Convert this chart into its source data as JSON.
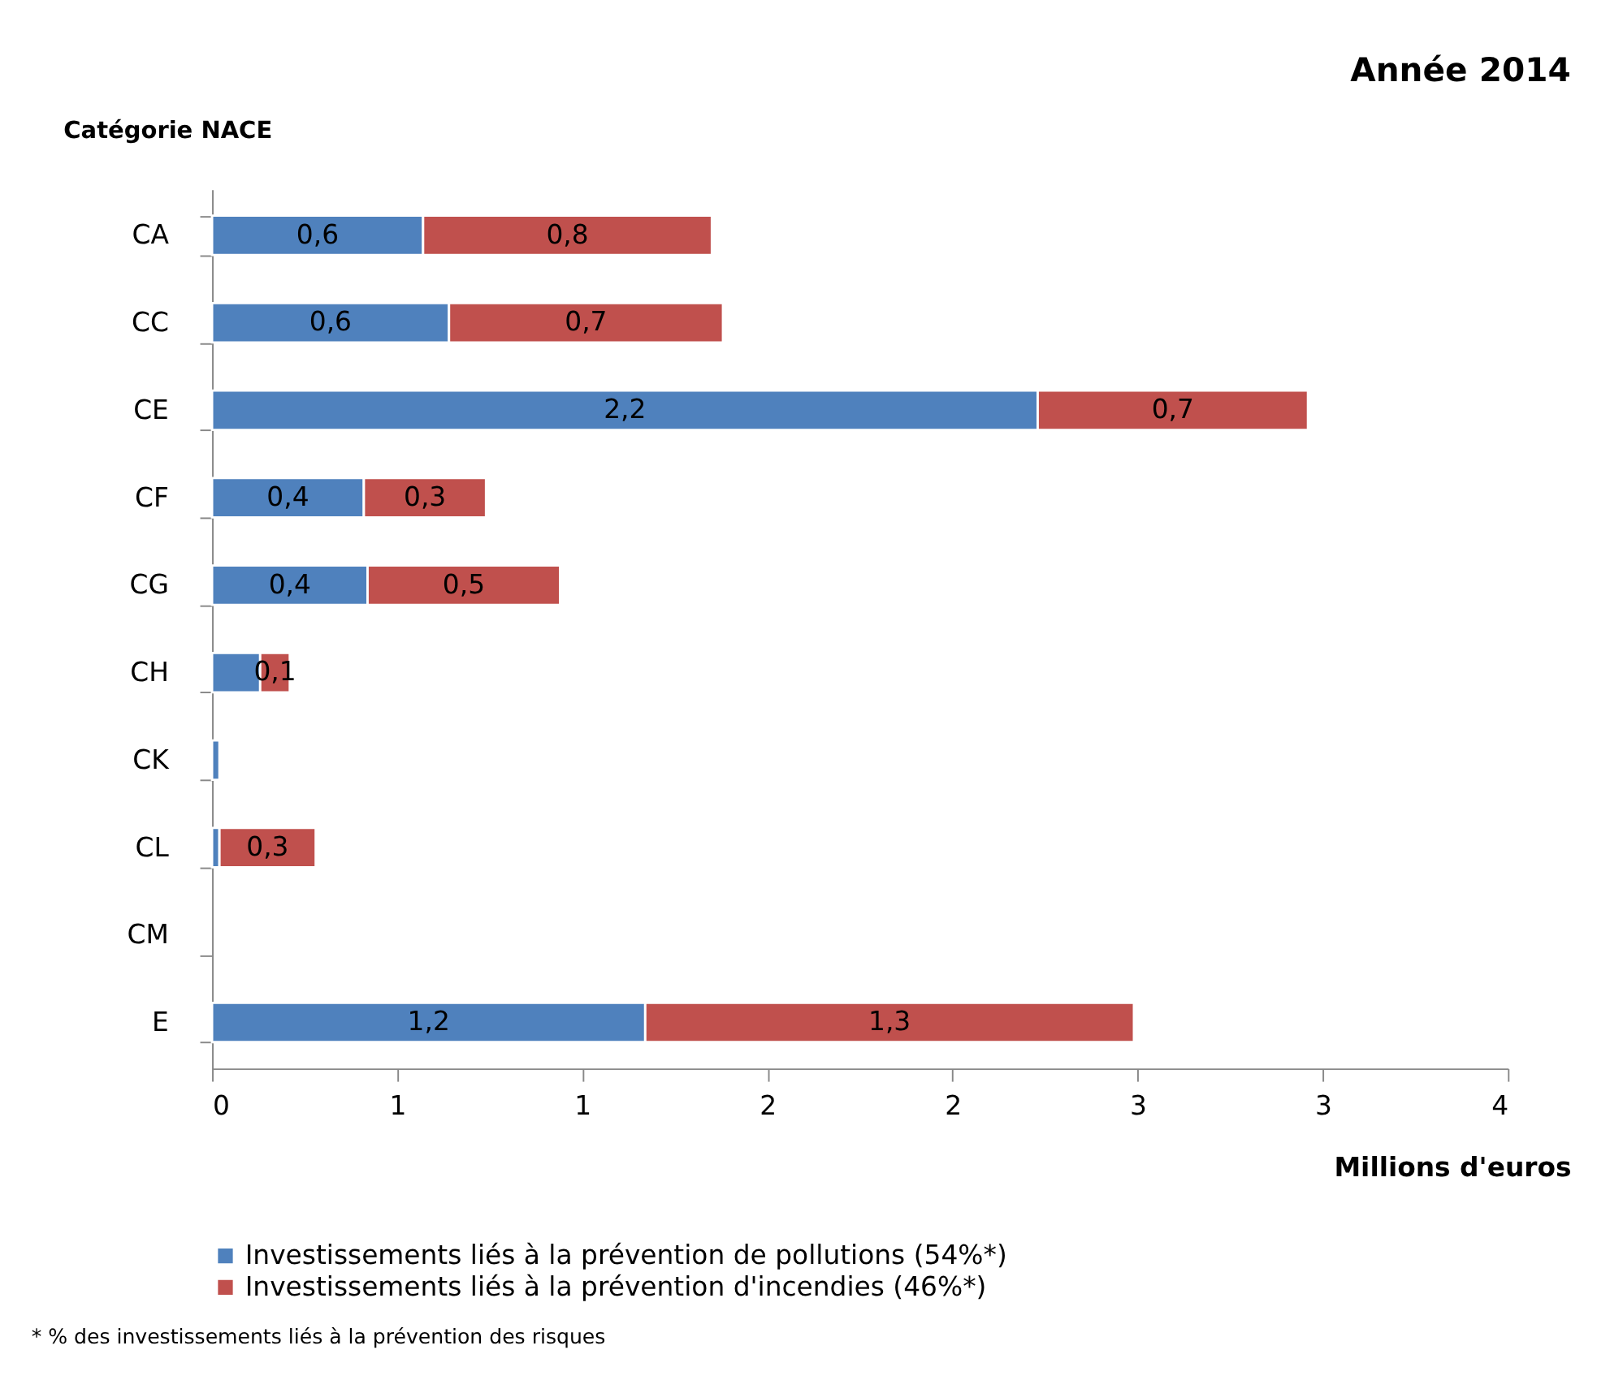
{
  "chart_data": {
    "type": "bar",
    "orientation": "horizontal",
    "stacked": true,
    "title": "Année 2014",
    "ylabel": "Catégorie NACE",
    "xlabel": "Millions d'euros",
    "categories": [
      "CA",
      "CC",
      "CE",
      "CF",
      "CG",
      "CH",
      "CK",
      "CL",
      "CM",
      "E"
    ],
    "series": [
      {
        "name": "Investissements liés à la prévention de pollutions (54%*)",
        "color": "#4f81bd",
        "values": [
          0.57,
          0.64,
          2.23,
          0.41,
          0.42,
          0.13,
          0.02,
          0.02,
          null,
          1.17
        ],
        "value_labels": [
          "0,6",
          "0,6",
          "2,2",
          "0,4",
          "0,4",
          null,
          null,
          null,
          null,
          "1,2"
        ]
      },
      {
        "name": "Investissements liés à la prévention d'incendies (46%*)",
        "color": "#c0504d",
        "values": [
          0.78,
          0.74,
          0.73,
          0.33,
          0.52,
          0.08,
          null,
          0.26,
          null,
          1.32
        ],
        "value_labels": [
          "0,8",
          "0,7",
          "0,7",
          "0,3",
          "0,5",
          "0,1",
          null,
          "0,3",
          null,
          "1,3"
        ]
      }
    ],
    "xlim": [
      0,
      3.5
    ],
    "xticks": [
      0,
      {
        "value": 0.5,
        "label": "1"
      },
      1,
      {
        "value": 1.5,
        "label": "2"
      },
      2,
      {
        "value": 2.5,
        "label": "3"
      },
      3,
      {
        "value": 3.5,
        "label": "4"
      }
    ],
    "grid": false,
    "legend": "bottom",
    "annotations": [
      "* % des investissements liés à la prévention des risques"
    ]
  }
}
